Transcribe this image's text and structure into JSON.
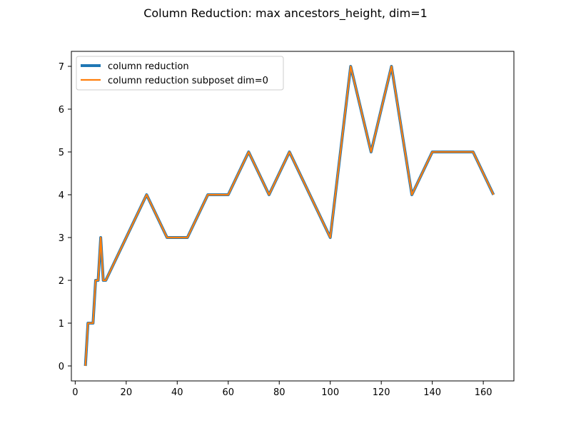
{
  "chart_data": {
    "type": "line",
    "title": "Column Reduction: max ancestors_height, dim=1",
    "xlabel": "",
    "ylabel": "",
    "xlim": [
      -1.5,
      172
    ],
    "ylim": [
      -0.35,
      7.35
    ],
    "xticks": [
      0,
      20,
      40,
      60,
      80,
      100,
      120,
      140,
      160
    ],
    "yticks": [
      0,
      1,
      2,
      3,
      4,
      5,
      6,
      7
    ],
    "grid": false,
    "legend_position": "top-left",
    "x": [
      4,
      5,
      7,
      8,
      9,
      10,
      11,
      12,
      20,
      28,
      36,
      44,
      52,
      60,
      68,
      76,
      84,
      92,
      100,
      108,
      116,
      124,
      132,
      140,
      148,
      156,
      164
    ],
    "series": [
      {
        "name": "column reduction",
        "color": "#1f77b4",
        "values": [
          0,
          1,
          1,
          2,
          2,
          3,
          2,
          2,
          3,
          4,
          3,
          3,
          4,
          4,
          5,
          4,
          5,
          4,
          3,
          7,
          5,
          7,
          4,
          5,
          5,
          5,
          4
        ]
      },
      {
        "name": "column reduction subposet dim=0",
        "color": "#ff7f0e",
        "values": [
          0,
          1,
          1,
          2,
          2,
          3,
          2,
          2,
          3,
          4,
          3,
          3,
          4,
          4,
          5,
          4,
          5,
          4,
          3,
          7,
          5,
          7,
          4,
          5,
          5,
          5,
          4
        ]
      }
    ]
  }
}
